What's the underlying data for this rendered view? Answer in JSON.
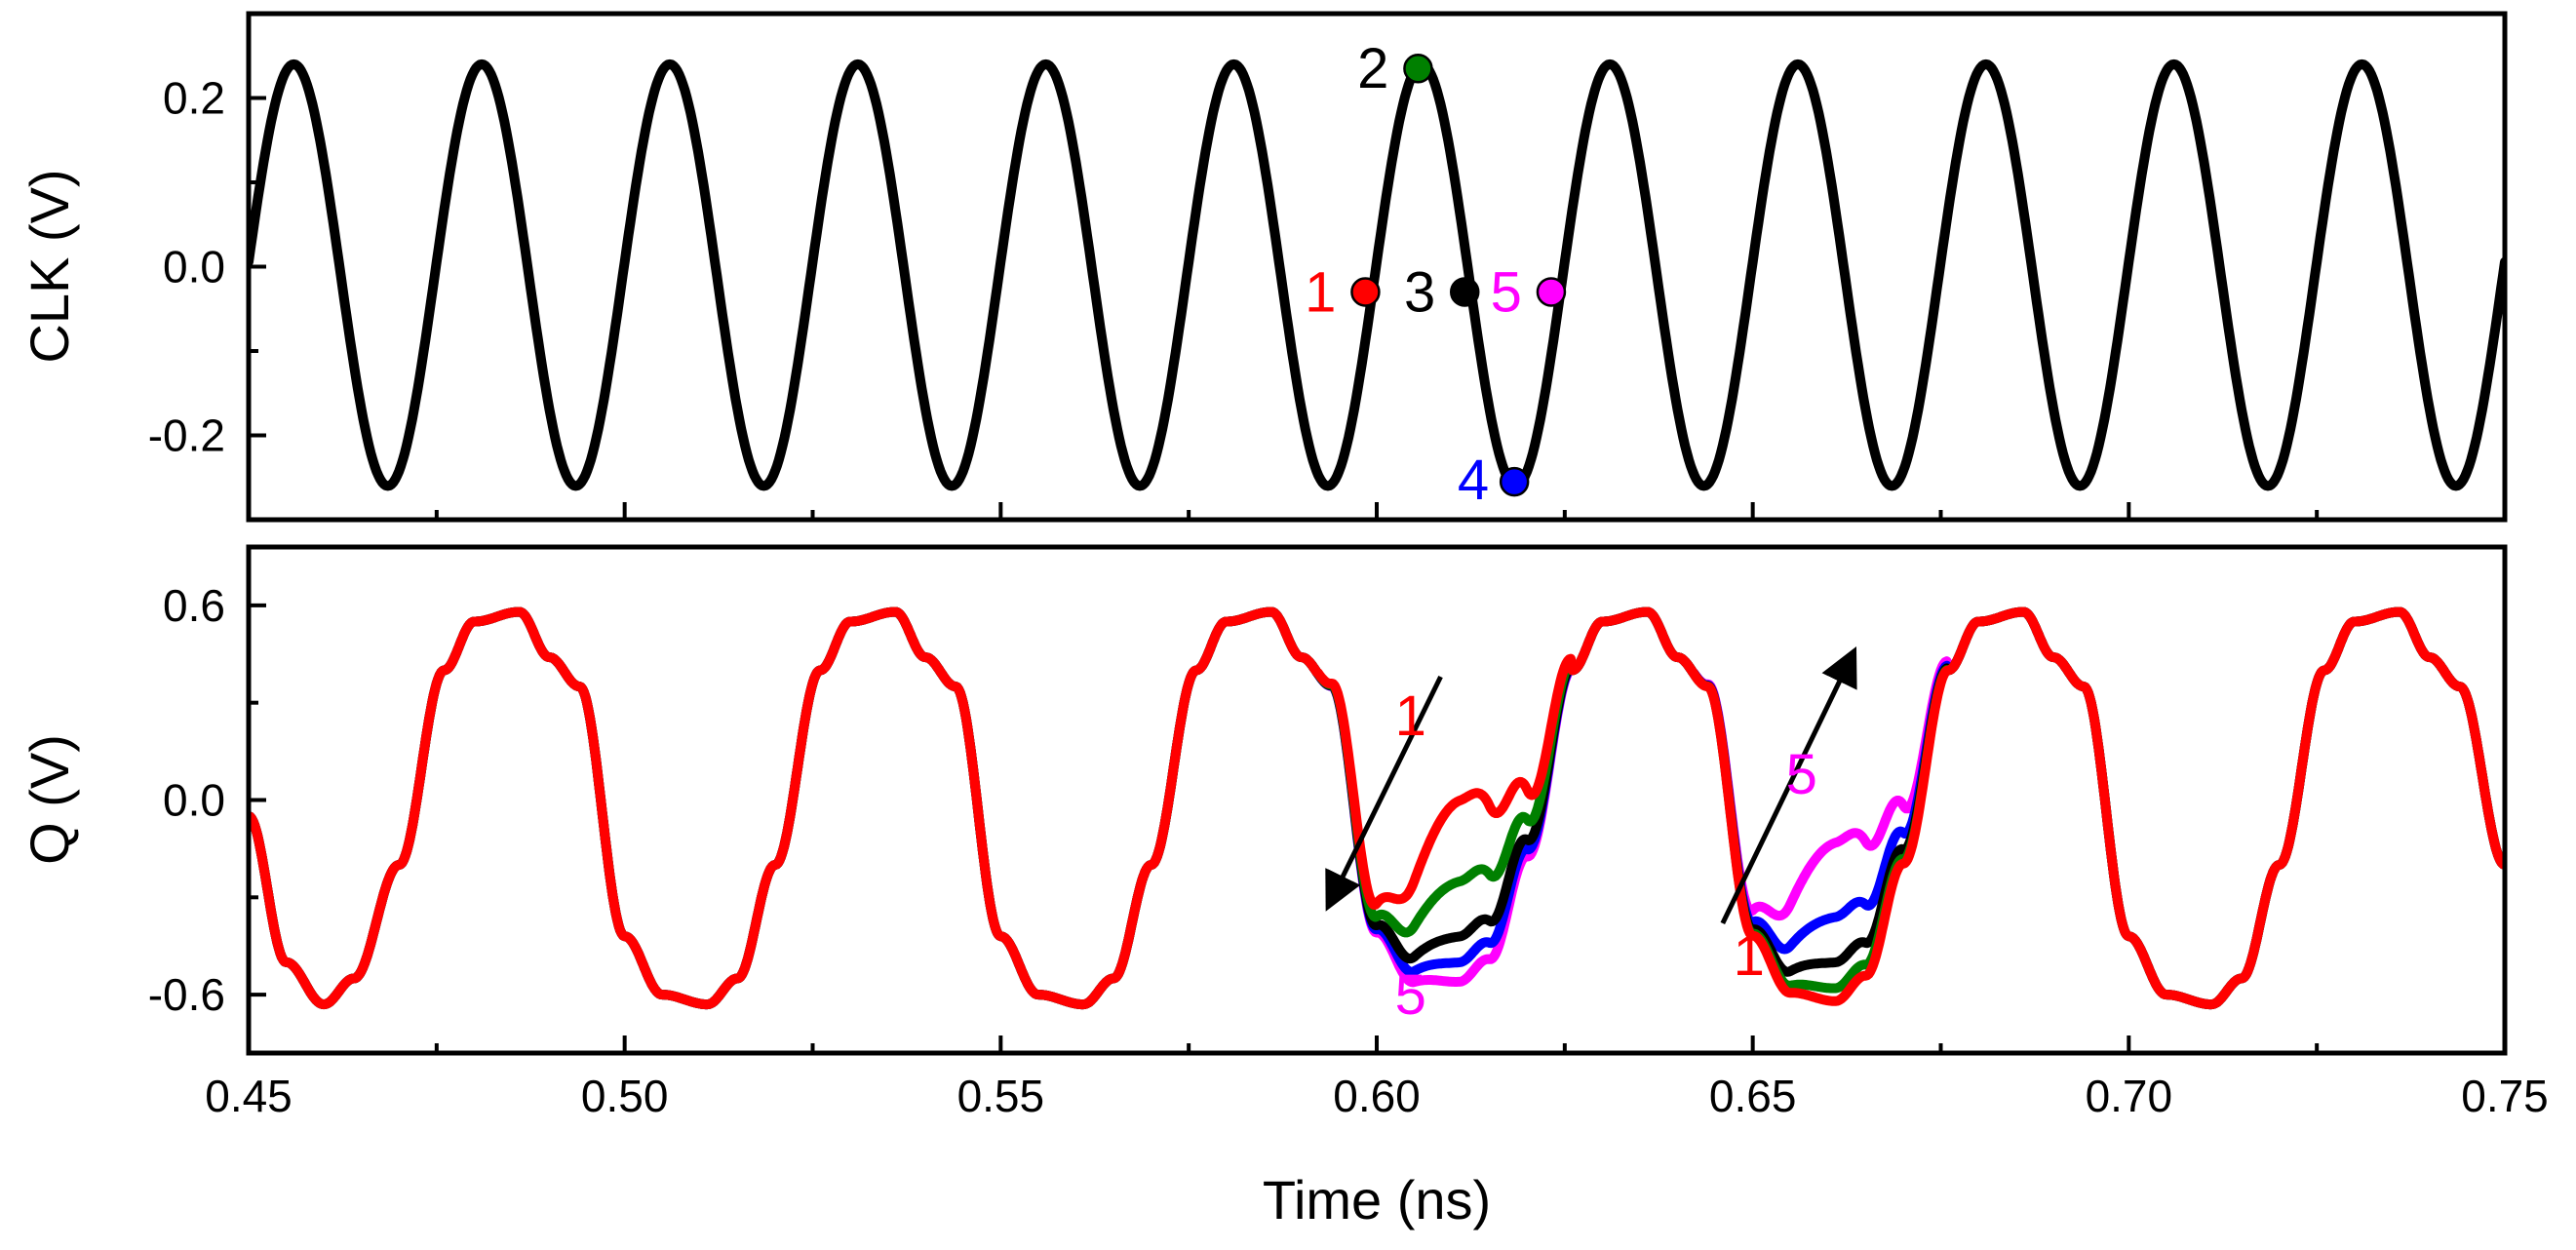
{
  "chart_data": [
    {
      "type": "line",
      "panel": "top",
      "ylabel": "CLK (V)",
      "xlim": [
        0.45,
        0.75
      ],
      "ylim": [
        -0.3,
        0.3
      ],
      "yticks": [
        -0.2,
        0.0,
        0.2
      ],
      "ytick_labels": [
        "-0.2",
        "0.0",
        "0.2"
      ],
      "series": [
        {
          "name": "CLK",
          "color": "#000000",
          "frequency_ghz": 40,
          "amplitude": 0.25,
          "offset": -0.01,
          "first_peak_ns": 0.456
        }
      ],
      "markers": [
        {
          "label": "1",
          "x": 0.5985,
          "y": -0.03,
          "color": "#ff0000",
          "text_color": "#ff0000"
        },
        {
          "label": "2",
          "x": 0.6055,
          "y": 0.235,
          "color": "#008000",
          "text_color": "#000000"
        },
        {
          "label": "3",
          "x": 0.6117,
          "y": -0.03,
          "color": "#000000",
          "text_color": "#000000"
        },
        {
          "label": "4",
          "x": 0.6183,
          "y": -0.255,
          "color": "#0000ff",
          "text_color": "#0000ff"
        },
        {
          "label": "5",
          "x": 0.6232,
          "y": -0.03,
          "color": "#ff00ff",
          "text_color": "#ff00ff"
        }
      ]
    },
    {
      "type": "line",
      "panel": "bottom",
      "xlabel": "Time (ns)",
      "ylabel": "Q (V)",
      "xlim": [
        0.45,
        0.75
      ],
      "ylim": [
        -0.78,
        0.78
      ],
      "xticks": [
        0.45,
        0.5,
        0.55,
        0.6,
        0.65,
        0.7,
        0.75
      ],
      "xtick_labels": [
        "0.45",
        "0.50",
        "0.55",
        "0.60",
        "0.65",
        "0.70",
        "0.75"
      ],
      "yticks": [
        -0.6,
        0.0,
        0.6
      ],
      "ytick_labels": [
        "-0.6",
        "0.0",
        "0.6"
      ],
      "base_waveform": {
        "x": [
          0.45,
          0.455,
          0.46,
          0.464,
          0.47,
          0.476,
          0.48,
          0.486,
          0.49,
          0.494,
          0.5,
          0.505,
          0.511,
          0.515,
          0.52,
          0.526,
          0.53,
          0.536,
          0.54,
          0.544,
          0.55,
          0.555,
          0.561,
          0.565,
          0.57,
          0.576,
          0.58,
          0.586,
          0.59,
          0.594,
          0.6,
          0.605,
          0.611,
          0.615,
          0.62,
          0.626,
          0.63,
          0.636,
          0.64,
          0.644,
          0.65,
          0.655,
          0.661,
          0.665,
          0.67,
          0.676,
          0.68,
          0.686,
          0.69,
          0.694,
          0.7,
          0.705,
          0.711,
          0.715,
          0.72,
          0.726,
          0.73,
          0.736,
          0.74,
          0.744,
          0.75
        ],
        "y": [
          -0.05,
          -0.5,
          -0.63,
          -0.55,
          -0.2,
          0.4,
          0.55,
          0.58,
          0.44,
          0.35,
          -0.42,
          -0.6,
          -0.63,
          -0.55,
          -0.2,
          0.4,
          0.55,
          0.58,
          0.44,
          0.35,
          -0.42,
          -0.6,
          -0.63,
          -0.55,
          -0.2,
          0.4,
          0.55,
          0.58,
          0.44,
          0.35,
          -0.42,
          -0.6,
          -0.63,
          -0.55,
          -0.2,
          0.4,
          0.55,
          0.58,
          0.44,
          0.35,
          -0.42,
          -0.6,
          -0.63,
          -0.55,
          -0.2,
          0.4,
          0.55,
          0.58,
          0.44,
          0.35,
          -0.42,
          -0.6,
          -0.63,
          -0.55,
          -0.2,
          0.4,
          0.55,
          0.58,
          0.44,
          0.35,
          -0.2
        ]
      },
      "series": [
        {
          "name": "1",
          "color": "#ff0000",
          "dip1_min": 0.0,
          "dip2_min": -0.62
        },
        {
          "name": "2",
          "color": "#008000",
          "dip1_min": -0.25,
          "dip2_min": -0.58
        },
        {
          "name": "3",
          "color": "#000000",
          "dip1_min": -0.42,
          "dip2_min": -0.5
        },
        {
          "name": "4",
          "color": "#0000ff",
          "dip1_min": -0.5,
          "dip2_min": -0.36
        },
        {
          "name": "5",
          "color": "#ff00ff",
          "dip1_min": -0.56,
          "dip2_min": -0.13
        }
      ],
      "annotations": [
        {
          "text": "1",
          "x": 0.6045,
          "y": 0.2,
          "color": "#ff0000"
        },
        {
          "text": "5",
          "x": 0.6045,
          "y": -0.66,
          "color": "#ff00ff"
        },
        {
          "text": "5",
          "x": 0.6565,
          "y": 0.02,
          "color": "#ff00ff"
        },
        {
          "text": "1",
          "x": 0.6495,
          "y": -0.54,
          "color": "#ff0000"
        }
      ],
      "arrows": [
        {
          "from": [
            0.6085,
            0.38
          ],
          "to": [
            0.5935,
            -0.33
          ],
          "color": "#000000"
        },
        {
          "from": [
            0.646,
            -0.38
          ],
          "to": [
            0.6635,
            0.46
          ],
          "color": "#000000"
        }
      ]
    }
  ]
}
